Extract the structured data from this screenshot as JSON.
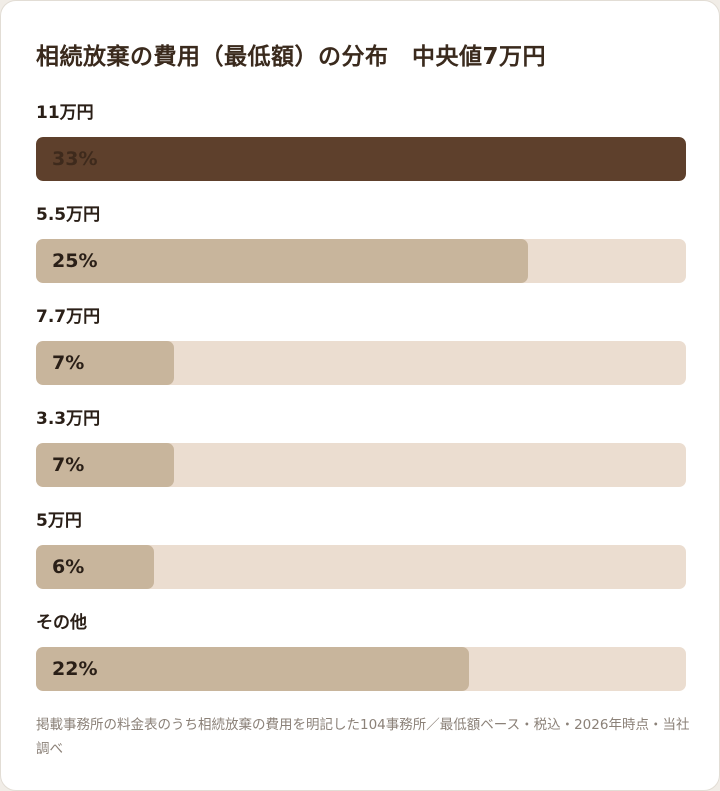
{
  "title": "相続放棄の費用（最低額）の分布　中央値7万円",
  "chart_data": {
    "type": "bar",
    "orientation": "horizontal",
    "title": "相続放棄の費用（最低額）の分布　中央値7万円",
    "categories": [
      "11万円",
      "5.5万円",
      "7.7万円",
      "3.3万円",
      "5万円",
      "その他"
    ],
    "values": [
      33,
      25,
      7,
      7,
      6,
      22
    ],
    "value_labels": [
      "33%",
      "25%",
      "7%",
      "7%",
      "6%",
      "22%"
    ],
    "unit": "%",
    "scale_max": 33,
    "colors": {
      "highlight": "#5e402c",
      "bar": "#c8b59c",
      "track": "#ebddd0"
    }
  },
  "note": "掲載事務所の料金表のうち相続放棄の費用を明記した104事務所／最低額ベース・税込・2026年時点・当社調べ"
}
